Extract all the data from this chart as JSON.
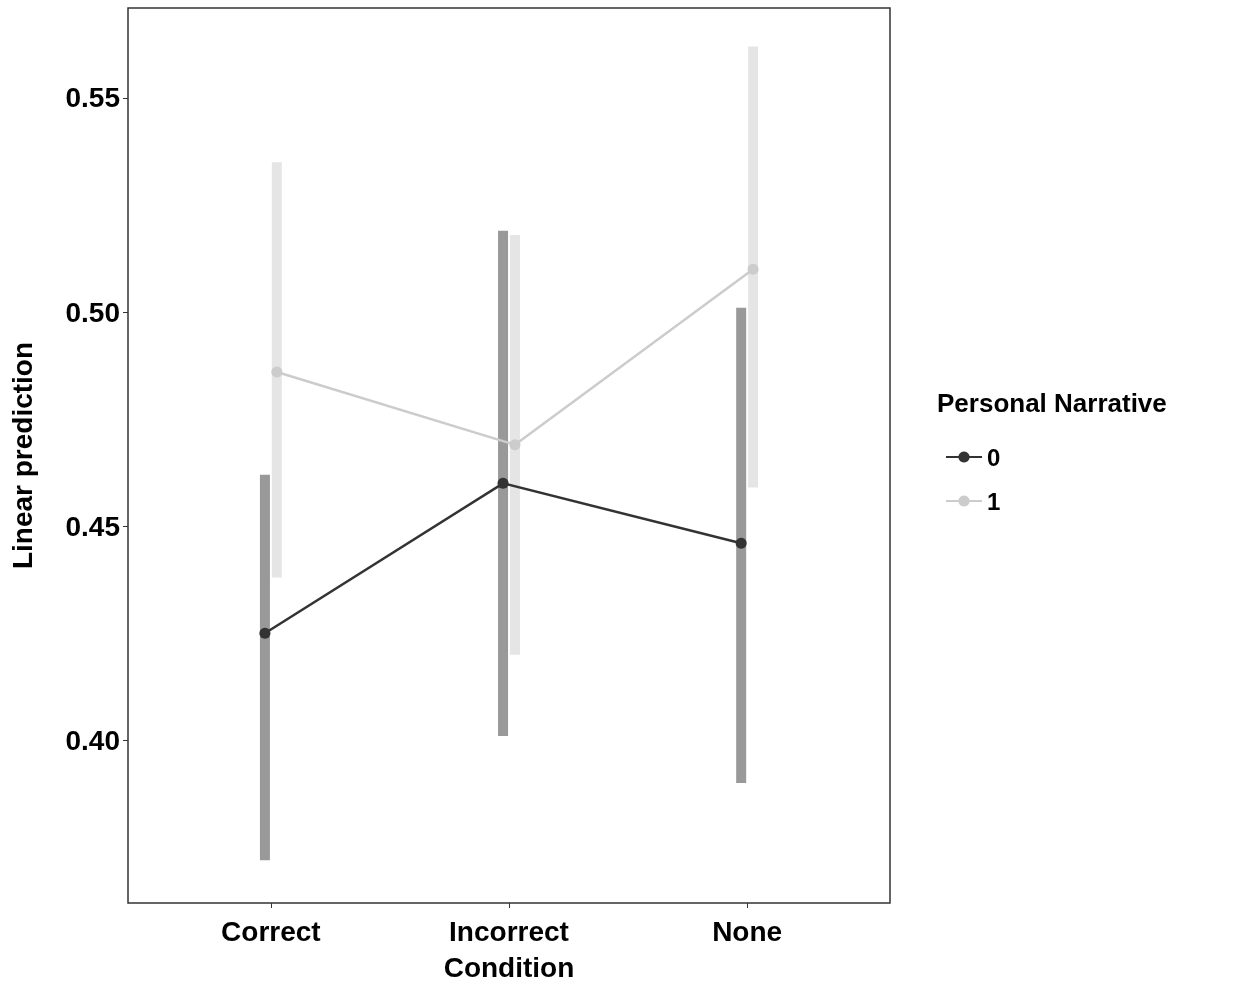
{
  "chart_data": {
    "type": "line",
    "xlabel": "Condition",
    "ylabel": "Linear prediction",
    "legend_title": "Personal Narrative",
    "categories": [
      "Correct",
      "Incorrect",
      "None"
    ],
    "series": [
      {
        "name": "0",
        "color": "#333333",
        "values": [
          0.425,
          0.46,
          0.446
        ],
        "errors": [
          [
            0.372,
            0.462
          ],
          [
            0.401,
            0.519
          ],
          [
            0.39,
            0.501
          ]
        ]
      },
      {
        "name": "1",
        "color": "#cccccc",
        "values": [
          0.486,
          0.469,
          0.51
        ],
        "errors": [
          [
            0.438,
            0.535
          ],
          [
            0.42,
            0.518
          ],
          [
            0.459,
            0.562
          ]
        ]
      }
    ],
    "ylim": [
      0.362,
      0.571
    ],
    "yticks": [
      {
        "value": 0.4,
        "label": "0.40"
      },
      {
        "value": 0.45,
        "label": "0.45"
      },
      {
        "value": 0.5,
        "label": "0.50"
      },
      {
        "value": 0.55,
        "label": "0.55"
      }
    ],
    "grid": false,
    "legend": "right",
    "marker": "circle",
    "line_style": "solid"
  }
}
